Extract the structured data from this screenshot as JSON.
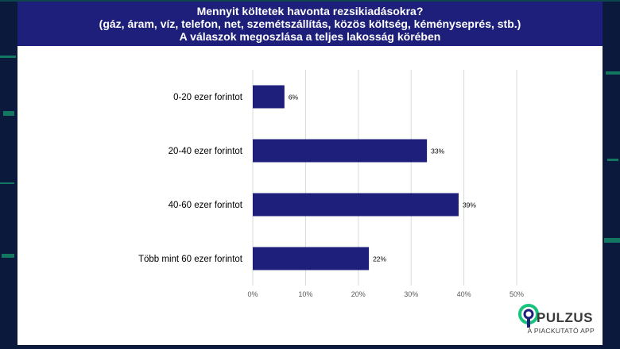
{
  "header": {
    "line1": "Mennyit költetek havonta rezsikiadásokra?",
    "line2": "(gáz, áram, víz, telefon, net, szemétszállítás, közös költség, kéményseprés, stb.)",
    "line3": "A válaszok megoszlása a teljes lakosság körében"
  },
  "brand": {
    "name": "PULZUS",
    "tagline": "A PIACKUTATÓ APP",
    "accent": "#19c37d"
  },
  "colors": {
    "bar": "#1d1f7a",
    "header_bg": "#1d1f7a",
    "grid": "#d9d9d9"
  },
  "chart_data": {
    "type": "bar",
    "orientation": "horizontal",
    "categories": [
      "0-20 ezer forintot",
      "20-40 ezer forintot",
      "40-60 ezer forintot",
      "Több mint 60 ezer forintot"
    ],
    "values": [
      6,
      33,
      39,
      22
    ],
    "value_labels": [
      "6%",
      "33%",
      "39%",
      "22%"
    ],
    "xlim": [
      0,
      50
    ],
    "xticks": [
      0,
      10,
      20,
      30,
      40,
      50
    ],
    "xtick_labels": [
      "0%",
      "10%",
      "20%",
      "30%",
      "40%",
      "50%"
    ],
    "grid": true
  }
}
